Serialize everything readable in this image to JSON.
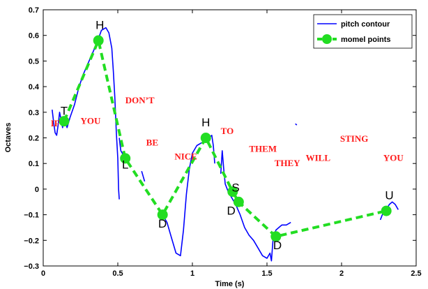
{
  "chart_data": {
    "type": "line",
    "xlabel": "Time (s)",
    "ylabel": "Octaves",
    "xlim": [
      0,
      2.5
    ],
    "ylim": [
      -0.3,
      0.7
    ],
    "xticks": [
      0,
      0.5,
      1,
      1.5,
      2,
      2.5
    ],
    "xtick_labels": [
      "0",
      "0.5",
      "1",
      "1.5",
      "2",
      "2.5"
    ],
    "yticks": [
      -0.3,
      -0.2,
      -0.1,
      0,
      0.1,
      0.2,
      0.3,
      0.4,
      0.5,
      0.6,
      0.7
    ],
    "ytick_labels": [
      "−0.3",
      "−0.2",
      "−0.1",
      "0",
      "0.1",
      "0.2",
      "0.3",
      "0.4",
      "0.5",
      "0.6",
      "0.7"
    ],
    "grid": false,
    "legend_position": "top-right",
    "series": [
      {
        "name": "pitch contour",
        "color": "#0000ff",
        "style": "solid",
        "segments": [
          [
            [
              0.06,
              0.31
            ],
            [
              0.07,
              0.26
            ],
            [
              0.08,
              0.22
            ],
            [
              0.09,
              0.21
            ],
            [
              0.1,
              0.25
            ],
            [
              0.11,
              0.3
            ],
            [
              0.12,
              0.27
            ],
            [
              0.13,
              0.24
            ],
            [
              0.14,
              0.28
            ],
            [
              0.16,
              0.24
            ],
            [
              0.18,
              0.28
            ],
            [
              0.21,
              0.33
            ],
            [
              0.24,
              0.4
            ],
            [
              0.27,
              0.45
            ],
            [
              0.3,
              0.49
            ],
            [
              0.33,
              0.53
            ],
            [
              0.36,
              0.57
            ],
            [
              0.39,
              0.62
            ],
            [
              0.42,
              0.63
            ],
            [
              0.44,
              0.61
            ],
            [
              0.46,
              0.55
            ],
            [
              0.47,
              0.46
            ],
            [
              0.48,
              0.36
            ],
            [
              0.49,
              0.22
            ],
            [
              0.5,
              0.12
            ],
            [
              0.505,
              0.0
            ],
            [
              0.51,
              -0.04
            ]
          ],
          [
            [
              0.51,
              0.2
            ],
            [
              0.52,
              0.15
            ],
            [
              0.54,
              0.13
            ],
            [
              0.56,
              0.11
            ]
          ],
          [
            [
              0.66,
              0.07
            ],
            [
              0.68,
              0.03
            ]
          ],
          [
            [
              0.78,
              -0.11
            ],
            [
              0.8,
              -0.1
            ],
            [
              0.83,
              -0.13
            ],
            [
              0.86,
              -0.19
            ],
            [
              0.89,
              -0.25
            ],
            [
              0.92,
              -0.26
            ],
            [
              0.94,
              -0.16
            ],
            [
              0.96,
              -0.02
            ],
            [
              0.98,
              0.08
            ],
            [
              1.0,
              0.14
            ],
            [
              1.03,
              0.17
            ],
            [
              1.06,
              0.18
            ],
            [
              1.09,
              0.19
            ],
            [
              1.11,
              0.2
            ],
            [
              1.13,
              0.21
            ],
            [
              1.14,
              0.17
            ],
            [
              1.15,
              0.1
            ]
          ],
          [
            [
              1.19,
              0.06
            ],
            [
              1.2,
              0.15
            ],
            [
              1.21,
              0.08
            ],
            [
              1.22,
              0.02
            ],
            [
              1.24,
              -0.01
            ],
            [
              1.26,
              -0.03
            ],
            [
              1.29,
              -0.06
            ],
            [
              1.32,
              -0.1
            ],
            [
              1.35,
              -0.15
            ],
            [
              1.38,
              -0.18
            ],
            [
              1.41,
              -0.2
            ],
            [
              1.44,
              -0.23
            ],
            [
              1.47,
              -0.26
            ],
            [
              1.5,
              -0.27
            ],
            [
              1.52,
              -0.25
            ],
            [
              1.53,
              -0.28
            ],
            [
              1.54,
              -0.2
            ],
            [
              1.56,
              -0.16
            ],
            [
              1.58,
              -0.15
            ],
            [
              1.6,
              -0.14
            ],
            [
              1.63,
              -0.14
            ],
            [
              1.66,
              -0.13
            ]
          ],
          [
            [
              1.69,
              0.255
            ],
            [
              1.7,
              0.25
            ]
          ],
          [
            [
              2.26,
              -0.12
            ],
            [
              2.28,
              -0.09
            ],
            [
              2.3,
              -0.08
            ],
            [
              2.32,
              -0.06
            ],
            [
              2.34,
              -0.05
            ],
            [
              2.36,
              -0.06
            ],
            [
              2.38,
              -0.08
            ]
          ]
        ]
      },
      {
        "name": "momel points",
        "color": "#22dd22",
        "style": "dashed",
        "x": [
          0.14,
          0.37,
          0.55,
          0.8,
          1.09,
          1.27,
          1.31,
          1.56,
          2.3
        ],
        "y": [
          0.265,
          0.58,
          0.12,
          -0.1,
          0.2,
          -0.01,
          -0.05,
          -0.185,
          -0.085
        ]
      }
    ],
    "tone_labels": [
      {
        "text": "T",
        "x": 0.14,
        "y": 0.29
      },
      {
        "text": "H",
        "x": 0.38,
        "y": 0.625
      },
      {
        "text": "L",
        "x": 0.55,
        "y": 0.08
      },
      {
        "text": "D",
        "x": 0.8,
        "y": -0.15
      },
      {
        "text": "H",
        "x": 1.09,
        "y": 0.245
      },
      {
        "text": "S",
        "x": 1.29,
        "y": -0.01
      },
      {
        "text": "D",
        "x": 1.26,
        "y": -0.1
      },
      {
        "text": "D",
        "x": 1.57,
        "y": -0.235
      },
      {
        "text": "U",
        "x": 2.32,
        "y": -0.04
      }
    ],
    "word_labels": [
      {
        "text": "IF",
        "x": 0.05,
        "y": 0.245
      },
      {
        "text": "YOU",
        "x": 0.25,
        "y": 0.255
      },
      {
        "text": "DON’T",
        "x": 0.55,
        "y": 0.335
      },
      {
        "text": "BE",
        "x": 0.69,
        "y": 0.17
      },
      {
        "text": "NICE",
        "x": 0.88,
        "y": 0.115
      },
      {
        "text": "TO",
        "x": 1.19,
        "y": 0.215
      },
      {
        "text": "THEM",
        "x": 1.38,
        "y": 0.145
      },
      {
        "text": "THEY",
        "x": 1.55,
        "y": 0.09
      },
      {
        "text": "WILL",
        "x": 1.76,
        "y": 0.11
      },
      {
        "text": "STING",
        "x": 1.99,
        "y": 0.185
      },
      {
        "text": "YOU",
        "x": 2.28,
        "y": 0.11
      }
    ]
  }
}
